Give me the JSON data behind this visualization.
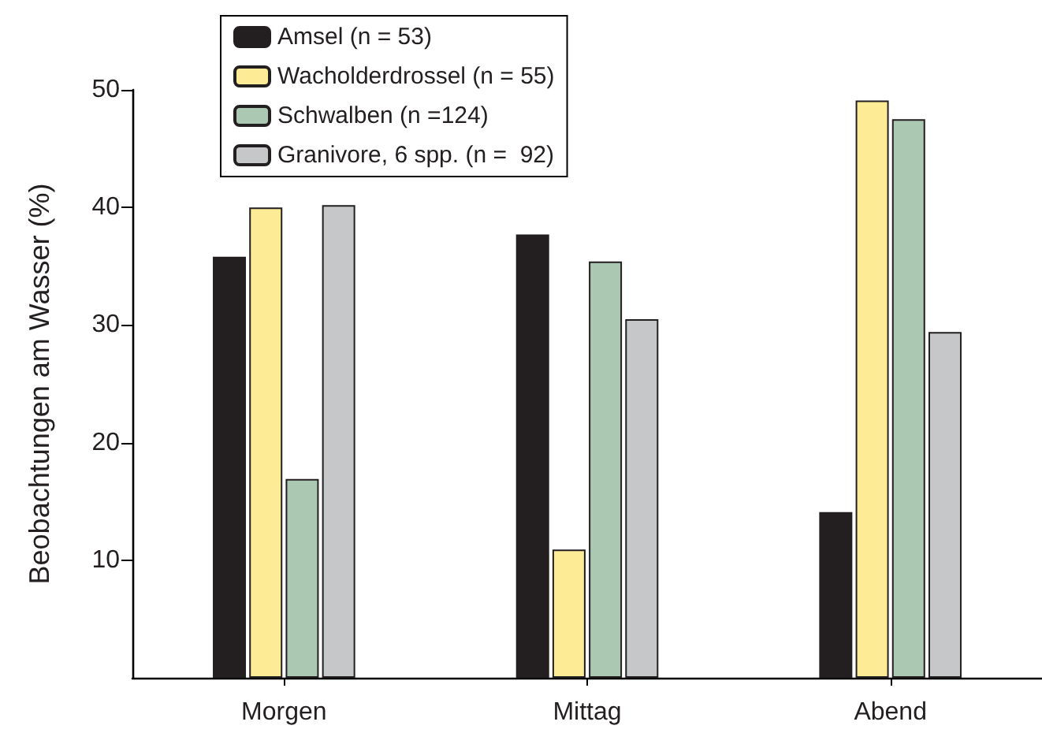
{
  "chart_data": {
    "type": "bar",
    "ylabel": "Beobachtungen am Wasser (%)",
    "categories": [
      "Morgen",
      "Mittag",
      "Abend"
    ],
    "series": [
      {
        "name": "Amsel (n = 53)",
        "color": "#231f20",
        "values": [
          35.8,
          37.7,
          14.1
        ]
      },
      {
        "name": "Wacholderdrossel (n = 55)",
        "color": "#feeb96",
        "values": [
          40.0,
          10.9,
          49.1
        ]
      },
      {
        "name": "Schwalben (n =124)",
        "color": "#abc8b2",
        "values": [
          16.9,
          35.4,
          47.5
        ]
      },
      {
        "name": "Granivore, 6 spp. (n =  92)",
        "color": "#c6c7c9",
        "values": [
          40.2,
          30.5,
          29.4
        ]
      }
    ],
    "ylim": [
      0,
      50
    ],
    "yticks": [
      10,
      20,
      30,
      40,
      50
    ],
    "grid": false,
    "legend": "top left"
  }
}
